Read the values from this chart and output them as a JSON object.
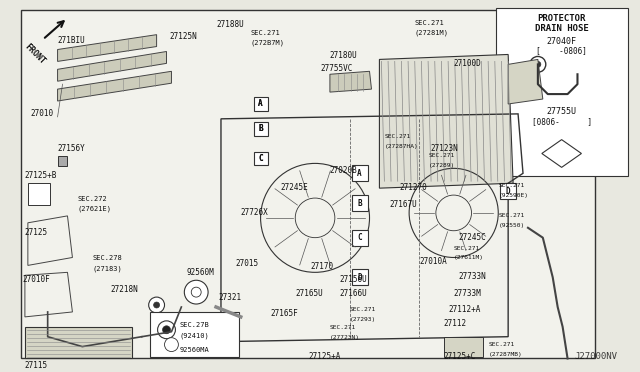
{
  "fig_width": 6.4,
  "fig_height": 3.72,
  "dpi": 100,
  "bg_color": "#e8e8e0",
  "main_bg": "#f2f2ec",
  "border_color": "#222222",
  "tc": "#111111",
  "watermark": "J27000NV",
  "inset_title1": "PROTECTOR",
  "inset_title2": "DRAIN HOSE",
  "inset_part1": "27040F",
  "inset_part1b": "[    -0806]",
  "inset_part2": "27755U",
  "inset_part2b": "[0806-      ]"
}
